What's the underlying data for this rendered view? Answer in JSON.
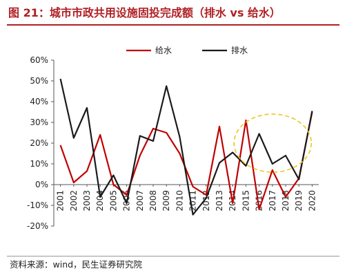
{
  "title": "图 21：城市市政共用设施固投完成额（排水 vs 给水）",
  "source": "资料来源：wind，民生证券研究院",
  "chart_data": {
    "type": "line",
    "x": [
      "2001",
      "2002",
      "2003",
      "2004",
      "2005",
      "2006",
      "2007",
      "2008",
      "2009",
      "2010",
      "2011",
      "2012",
      "2013",
      "2014",
      "2015",
      "2016",
      "2017",
      "2018",
      "2019",
      "2020"
    ],
    "y_ticks": [
      "60%",
      "50%",
      "40%",
      "30%",
      "20%",
      "10%",
      "0%",
      "-10%",
      "-20%"
    ],
    "ylim": [
      -20,
      60
    ],
    "series": [
      {
        "name": "给水",
        "color": "#c00000",
        "values": [
          19,
          1,
          6.5,
          24,
          0,
          -5,
          14,
          27,
          25,
          15,
          -1,
          -5,
          28,
          -9,
          31,
          -12,
          7,
          -6,
          3,
          35
        ]
      },
      {
        "name": "排水",
        "color": "#1a1a1a",
        "values": [
          51,
          22.5,
          37,
          -6,
          4.5,
          -9,
          23.5,
          21,
          47.5,
          23,
          -14.5,
          -6.5,
          10.5,
          15.5,
          9,
          24.5,
          10,
          14,
          2.5,
          35.5
        ]
      }
    ],
    "legend_position": "top-center",
    "annotation": "dashed yellow ellipse highlighting 2014–2019"
  }
}
